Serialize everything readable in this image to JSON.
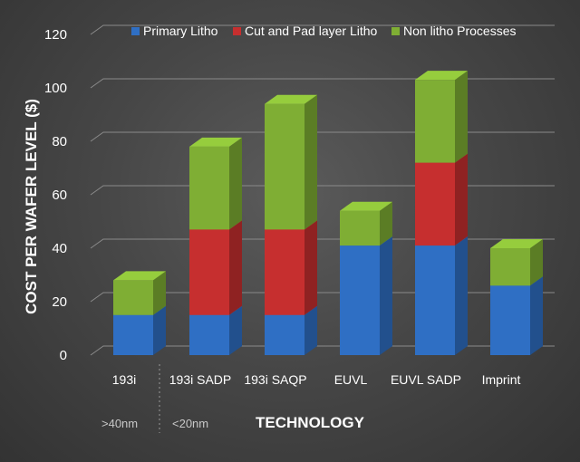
{
  "chart_data": {
    "type": "bar",
    "stacked": true,
    "style": "3d",
    "categories": [
      "193i",
      "193i SADP",
      "193i SAQP",
      "EUVL",
      "EUVL SADP",
      "Imprint"
    ],
    "series": [
      {
        "name": "Primary Litho",
        "color": "#2f6fc4",
        "values": [
          15,
          15,
          15,
          41,
          41,
          26
        ]
      },
      {
        "name": "Cut and Pad layer Litho",
        "color": "#c62f2f",
        "values": [
          0,
          32,
          32,
          0,
          31,
          0
        ]
      },
      {
        "name": "Non litho Processes",
        "color": "#7fae34",
        "values": [
          13,
          31,
          47,
          13,
          31,
          14
        ]
      }
    ],
    "ylabel": "COST PER WAFER LEVEL ($)",
    "xlabel": "TECHNOLOGY",
    "ylim": [
      0,
      120
    ],
    "yticks": [
      0,
      20,
      40,
      60,
      80,
      100,
      120
    ],
    "grid": true,
    "legend_position": "top",
    "group_labels": [
      ">40nm",
      "<20nm"
    ]
  }
}
